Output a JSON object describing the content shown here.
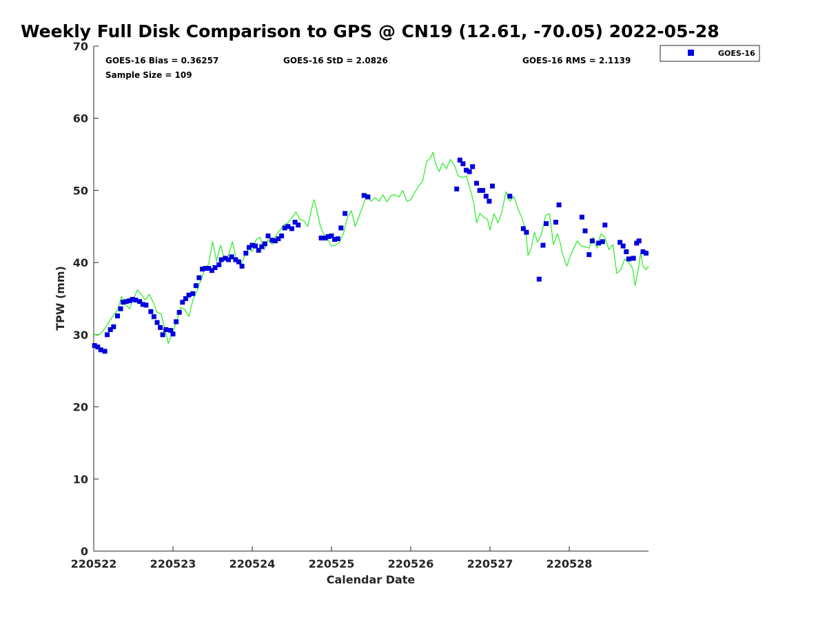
{
  "chart_data": {
    "type": "scatter",
    "title": "Weekly Full Disk Comparison to GPS @ CN19 (12.61, -70.05) 2022-05-28",
    "xlabel": "Calendar Date",
    "ylabel": "TPW (mm)",
    "xlim": [
      0,
      7
    ],
    "ylim": [
      0,
      70
    ],
    "yticks": [
      0,
      10,
      20,
      30,
      40,
      50,
      60,
      70
    ],
    "xticks": [
      {
        "x": 0,
        "label": "220522"
      },
      {
        "x": 1,
        "label": "220523"
      },
      {
        "x": 2,
        "label": "220524"
      },
      {
        "x": 3,
        "label": "220525"
      },
      {
        "x": 4,
        "label": "220526"
      },
      {
        "x": 5,
        "label": "220527"
      },
      {
        "x": 6,
        "label": "220528"
      }
    ],
    "grid": false,
    "legend_position": "top-right, outside plot",
    "stats": {
      "bias": "GOES-16 Bias = 0.36257",
      "std": "GOES-16 StD = 2.0826",
      "rms": "GOES-16 RMS = 2.1139",
      "sample": "Sample Size = 109"
    },
    "series": [
      {
        "name": "GOES-16",
        "kind": "markers",
        "color": "#0000dd",
        "points": [
          [
            0.01,
            28.5
          ],
          [
            0.05,
            28.3
          ],
          [
            0.09,
            27.9
          ],
          [
            0.14,
            27.7
          ],
          [
            0.17,
            30.0
          ],
          [
            0.21,
            30.7
          ],
          [
            0.25,
            31.1
          ],
          [
            0.3,
            32.6
          ],
          [
            0.34,
            33.6
          ],
          [
            0.37,
            34.5
          ],
          [
            0.41,
            34.6
          ],
          [
            0.45,
            34.7
          ],
          [
            0.49,
            34.9
          ],
          [
            0.53,
            34.8
          ],
          [
            0.58,
            34.6
          ],
          [
            0.62,
            34.2
          ],
          [
            0.66,
            34.1
          ],
          [
            0.72,
            33.2
          ],
          [
            0.76,
            32.5
          ],
          [
            0.8,
            31.7
          ],
          [
            0.84,
            31.0
          ],
          [
            0.87,
            30.0
          ],
          [
            0.91,
            30.7
          ],
          [
            0.97,
            30.6
          ],
          [
            1.0,
            30.1
          ],
          [
            1.04,
            31.8
          ],
          [
            1.08,
            33.1
          ],
          [
            1.12,
            34.5
          ],
          [
            1.16,
            35.0
          ],
          [
            1.2,
            35.5
          ],
          [
            1.25,
            35.7
          ],
          [
            1.29,
            36.8
          ],
          [
            1.33,
            37.9
          ],
          [
            1.37,
            39.1
          ],
          [
            1.41,
            39.2
          ],
          [
            1.45,
            39.2
          ],
          [
            1.49,
            38.9
          ],
          [
            1.53,
            39.3
          ],
          [
            1.58,
            39.7
          ],
          [
            1.61,
            40.4
          ],
          [
            1.66,
            40.6
          ],
          [
            1.7,
            40.4
          ],
          [
            1.74,
            40.8
          ],
          [
            1.79,
            40.4
          ],
          [
            1.83,
            40.1
          ],
          [
            1.87,
            39.5
          ],
          [
            1.92,
            41.3
          ],
          [
            1.96,
            42.1
          ],
          [
            2.0,
            42.4
          ],
          [
            2.04,
            42.3
          ],
          [
            2.08,
            41.7
          ],
          [
            2.12,
            42.2
          ],
          [
            2.16,
            42.6
          ],
          [
            2.2,
            43.7
          ],
          [
            2.25,
            43.1
          ],
          [
            2.29,
            43.0
          ],
          [
            2.33,
            43.3
          ],
          [
            2.37,
            43.7
          ],
          [
            2.41,
            44.8
          ],
          [
            2.45,
            45.0
          ],
          [
            2.5,
            44.7
          ],
          [
            2.54,
            45.6
          ],
          [
            2.58,
            45.2
          ],
          [
            2.87,
            43.4
          ],
          [
            2.92,
            43.4
          ],
          [
            2.96,
            43.6
          ],
          [
            3.0,
            43.7
          ],
          [
            3.04,
            43.2
          ],
          [
            3.08,
            43.3
          ],
          [
            3.12,
            44.8
          ],
          [
            3.17,
            46.8
          ],
          [
            3.41,
            49.3
          ],
          [
            3.46,
            49.1
          ],
          [
            4.58,
            50.2
          ],
          [
            4.62,
            54.2
          ],
          [
            4.66,
            53.7
          ],
          [
            4.7,
            52.8
          ],
          [
            4.74,
            52.6
          ],
          [
            4.78,
            53.3
          ],
          [
            4.83,
            51.0
          ],
          [
            4.87,
            50.0
          ],
          [
            4.91,
            50.0
          ],
          [
            4.95,
            49.2
          ],
          [
            4.99,
            48.5
          ],
          [
            5.03,
            50.6
          ],
          [
            5.25,
            49.2
          ],
          [
            5.42,
            44.7
          ],
          [
            5.46,
            44.2
          ],
          [
            5.62,
            37.7
          ],
          [
            5.67,
            42.4
          ],
          [
            5.71,
            45.4
          ],
          [
            5.83,
            45.6
          ],
          [
            5.87,
            48.0
          ],
          [
            6.16,
            46.3
          ],
          [
            6.2,
            44.4
          ],
          [
            6.25,
            41.1
          ],
          [
            6.29,
            43.0
          ],
          [
            6.37,
            42.7
          ],
          [
            6.42,
            42.9
          ],
          [
            6.45,
            45.2
          ],
          [
            6.64,
            42.8
          ],
          [
            6.68,
            42.3
          ],
          [
            6.72,
            41.5
          ],
          [
            6.75,
            40.5
          ],
          [
            6.81,
            40.6
          ],
          [
            6.85,
            42.7
          ],
          [
            6.88,
            43.0
          ],
          [
            6.93,
            41.5
          ],
          [
            6.97,
            41.3
          ]
        ]
      },
      {
        "kind": "line",
        "color": "#33ee33",
        "points": [
          [
            0.0,
            30.0
          ],
          [
            0.05,
            29.9
          ],
          [
            0.1,
            30.3
          ],
          [
            0.15,
            31.0
          ],
          [
            0.2,
            31.9
          ],
          [
            0.25,
            32.7
          ],
          [
            0.3,
            33.4
          ],
          [
            0.35,
            35.3
          ],
          [
            0.4,
            34.2
          ],
          [
            0.45,
            33.6
          ],
          [
            0.5,
            34.9
          ],
          [
            0.55,
            36.2
          ],
          [
            0.6,
            35.6
          ],
          [
            0.65,
            34.8
          ],
          [
            0.7,
            35.6
          ],
          [
            0.75,
            34.5
          ],
          [
            0.8,
            33.1
          ],
          [
            0.85,
            32.9
          ],
          [
            0.9,
            30.7
          ],
          [
            0.94,
            28.8
          ],
          [
            1.0,
            30.4
          ],
          [
            1.05,
            32.0
          ],
          [
            1.1,
            33.8
          ],
          [
            1.15,
            33.5
          ],
          [
            1.2,
            32.5
          ],
          [
            1.25,
            34.8
          ],
          [
            1.3,
            36.0
          ],
          [
            1.35,
            37.5
          ],
          [
            1.4,
            39.0
          ],
          [
            1.45,
            39.8
          ],
          [
            1.5,
            42.9
          ],
          [
            1.55,
            40.2
          ],
          [
            1.6,
            42.4
          ],
          [
            1.65,
            40.3
          ],
          [
            1.7,
            41.0
          ],
          [
            1.75,
            42.9
          ],
          [
            1.8,
            40.5
          ],
          [
            1.85,
            39.5
          ],
          [
            1.9,
            40.8
          ],
          [
            1.95,
            42.0
          ],
          [
            2.0,
            41.5
          ],
          [
            2.05,
            43.2
          ],
          [
            2.1,
            43.5
          ],
          [
            2.15,
            41.8
          ],
          [
            2.2,
            43.2
          ],
          [
            2.25,
            42.5
          ],
          [
            2.3,
            43.8
          ],
          [
            2.35,
            44.5
          ],
          [
            2.4,
            45.2
          ],
          [
            2.45,
            45.5
          ],
          [
            2.5,
            46.2
          ],
          [
            2.55,
            47.0
          ],
          [
            2.6,
            46.0
          ],
          [
            2.65,
            45.8
          ],
          [
            2.7,
            45.0
          ],
          [
            2.75,
            47.5
          ],
          [
            2.78,
            48.7
          ],
          [
            2.82,
            47.0
          ],
          [
            2.86,
            45.0
          ],
          [
            2.9,
            44.0
          ],
          [
            2.95,
            43.2
          ],
          [
            3.0,
            42.3
          ],
          [
            3.05,
            42.4
          ],
          [
            3.1,
            42.8
          ],
          [
            3.15,
            44.0
          ],
          [
            3.2,
            46.2
          ],
          [
            3.25,
            47.2
          ],
          [
            3.3,
            45.0
          ],
          [
            3.35,
            46.5
          ],
          [
            3.4,
            48.0
          ],
          [
            3.45,
            49.5
          ],
          [
            3.5,
            48.5
          ],
          [
            3.55,
            49.0
          ],
          [
            3.6,
            48.5
          ],
          [
            3.65,
            49.4
          ],
          [
            3.7,
            48.4
          ],
          [
            3.75,
            49.3
          ],
          [
            3.8,
            49.4
          ],
          [
            3.85,
            49.1
          ],
          [
            3.9,
            50.0
          ],
          [
            3.95,
            48.5
          ],
          [
            4.0,
            48.7
          ],
          [
            4.05,
            49.7
          ],
          [
            4.1,
            50.6
          ],
          [
            4.15,
            51.3
          ],
          [
            4.2,
            54.0
          ],
          [
            4.25,
            54.5
          ],
          [
            4.28,
            55.3
          ],
          [
            4.32,
            53.5
          ],
          [
            4.36,
            52.6
          ],
          [
            4.4,
            53.8
          ],
          [
            4.45,
            53.0
          ],
          [
            4.5,
            54.3
          ],
          [
            4.55,
            53.5
          ],
          [
            4.6,
            52.0
          ],
          [
            4.65,
            51.8
          ],
          [
            4.7,
            52.0
          ],
          [
            4.75,
            50.2
          ],
          [
            4.8,
            48.0
          ],
          [
            4.83,
            45.5
          ],
          [
            4.87,
            46.8
          ],
          [
            4.92,
            46.3
          ],
          [
            4.97,
            46.0
          ],
          [
            5.0,
            44.5
          ],
          [
            5.05,
            46.8
          ],
          [
            5.1,
            45.5
          ],
          [
            5.15,
            47.0
          ],
          [
            5.2,
            49.8
          ],
          [
            5.25,
            48.5
          ],
          [
            5.3,
            49.2
          ],
          [
            5.35,
            47.5
          ],
          [
            5.4,
            46.3
          ],
          [
            5.45,
            44.5
          ],
          [
            5.48,
            41.0
          ],
          [
            5.52,
            42.0
          ],
          [
            5.56,
            44.2
          ],
          [
            5.6,
            42.8
          ],
          [
            5.65,
            44.0
          ],
          [
            5.7,
            46.5
          ],
          [
            5.75,
            46.8
          ],
          [
            5.8,
            42.5
          ],
          [
            5.85,
            44.0
          ],
          [
            5.88,
            43.0
          ],
          [
            5.92,
            41.0
          ],
          [
            5.97,
            39.5
          ],
          [
            6.0,
            40.5
          ],
          [
            6.05,
            41.8
          ],
          [
            6.1,
            43.0
          ],
          [
            6.15,
            42.3
          ],
          [
            6.2,
            42.2
          ],
          [
            6.25,
            42.0
          ],
          [
            6.3,
            43.5
          ],
          [
            6.35,
            42.0
          ],
          [
            6.4,
            44.0
          ],
          [
            6.45,
            43.5
          ],
          [
            6.5,
            41.8
          ],
          [
            6.55,
            42.5
          ],
          [
            6.6,
            38.5
          ],
          [
            6.65,
            39.0
          ],
          [
            6.7,
            40.5
          ],
          [
            6.75,
            40.0
          ],
          [
            6.8,
            39.2
          ],
          [
            6.83,
            36.8
          ],
          [
            6.87,
            39.0
          ],
          [
            6.9,
            41.3
          ],
          [
            6.93,
            39.5
          ],
          [
            6.97,
            39.0
          ],
          [
            7.0,
            39.5
          ]
        ]
      }
    ]
  }
}
